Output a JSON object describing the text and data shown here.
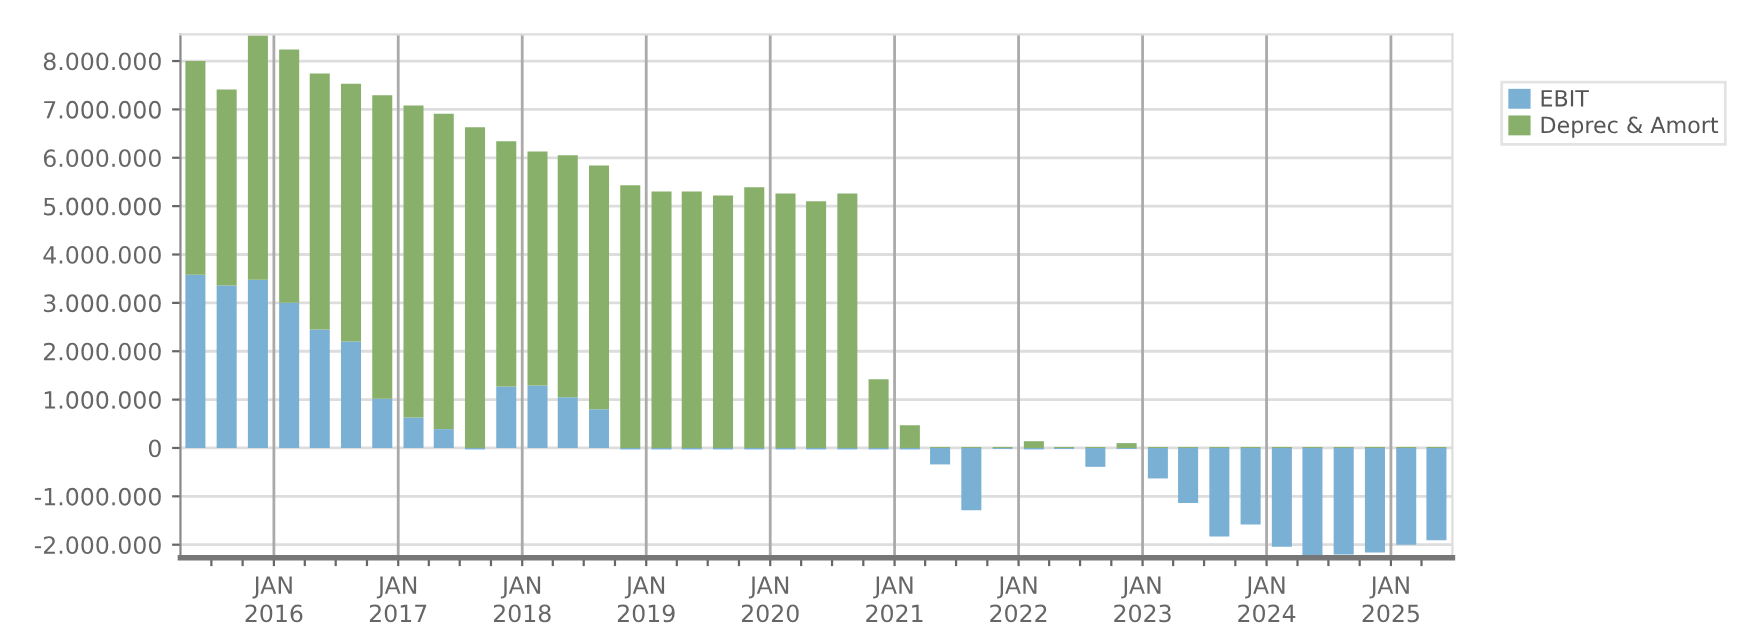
{
  "chart_data": {
    "type": "bar",
    "stacked": true,
    "x": [
      "2015-05-15",
      "2015-08-15",
      "2015-11-15",
      "2016-02-15",
      "2016-05-15",
      "2016-08-15",
      "2016-11-15",
      "2017-02-15",
      "2017-05-15",
      "2017-08-15",
      "2017-11-15",
      "2018-02-15",
      "2018-05-15",
      "2018-08-15",
      "2018-11-15",
      "2019-02-15",
      "2019-05-15",
      "2019-08-15",
      "2019-11-15",
      "2020-02-15",
      "2020-05-15",
      "2020-08-15",
      "2020-11-15",
      "2021-02-15",
      "2021-05-15",
      "2021-08-15",
      "2021-11-15",
      "2022-02-15",
      "2022-05-15",
      "2022-08-15",
      "2022-11-15",
      "2023-02-15",
      "2023-05-15",
      "2023-08-15",
      "2023-11-15",
      "2024-02-15",
      "2024-05-15",
      "2024-08-15",
      "2024-11-15",
      "2025-02-15",
      "2025-05-15"
    ],
    "series": [
      {
        "name": "EBIT",
        "color": "#7ab0d4",
        "values": [
          3580000,
          3360000,
          3480000,
          3000000,
          2450000,
          2200000,
          1020000,
          630000,
          390000,
          -30000,
          1270000,
          1290000,
          1050000,
          800000,
          -30000,
          -30000,
          -30000,
          -30000,
          -30000,
          -30000,
          -30000,
          -30000,
          -30000,
          -30000,
          -340000,
          -1290000,
          -20000,
          -30000,
          -20000,
          -390000,
          -20000,
          -630000,
          -1140000,
          -1830000,
          -1580000,
          -2040000,
          -2250000,
          -2200000,
          -2160000,
          -2000000,
          -1910000
        ]
      },
      {
        "name": "Deprec & Amort",
        "color": "#88b06b",
        "values": [
          4420000,
          4050000,
          5050000,
          5240000,
          5290000,
          5330000,
          6270000,
          6450000,
          6520000,
          6630000,
          5070000,
          4840000,
          5000000,
          5040000,
          5430000,
          5300000,
          5300000,
          5220000,
          5390000,
          5260000,
          5100000,
          5260000,
          1420000,
          470000,
          20000,
          20000,
          20000,
          140000,
          20000,
          20000,
          100000,
          20000,
          20000,
          20000,
          20000,
          20000,
          20000,
          20000,
          20000,
          20000,
          20000
        ]
      }
    ],
    "xlim": [
      "2015-04-01",
      "2025-07-01"
    ],
    "xticks": [
      {
        "value": "2015-07-01",
        "label": null
      },
      {
        "value": "2015-10-01",
        "label": null
      },
      {
        "value": "2016-01-01",
        "label": "JAN\n2016"
      },
      {
        "value": "2016-04-01",
        "label": null
      },
      {
        "value": "2016-07-01",
        "label": null
      },
      {
        "value": "2016-10-01",
        "label": null
      },
      {
        "value": "2017-01-01",
        "label": "JAN\n2017"
      },
      {
        "value": "2017-04-01",
        "label": null
      },
      {
        "value": "2017-07-01",
        "label": null
      },
      {
        "value": "2017-10-01",
        "label": null
      },
      {
        "value": "2018-01-01",
        "label": "JAN\n2018"
      },
      {
        "value": "2018-04-01",
        "label": null
      },
      {
        "value": "2018-07-01",
        "label": null
      },
      {
        "value": "2018-10-01",
        "label": null
      },
      {
        "value": "2019-01-01",
        "label": "JAN\n2019"
      },
      {
        "value": "2019-04-01",
        "label": null
      },
      {
        "value": "2019-07-01",
        "label": null
      },
      {
        "value": "2019-10-01",
        "label": null
      },
      {
        "value": "2020-01-01",
        "label": "JAN\n2020"
      },
      {
        "value": "2020-04-01",
        "label": null
      },
      {
        "value": "2020-07-01",
        "label": null
      },
      {
        "value": "2020-10-01",
        "label": null
      },
      {
        "value": "2021-01-01",
        "label": "JAN\n2021"
      },
      {
        "value": "2021-04-01",
        "label": null
      },
      {
        "value": "2021-07-01",
        "label": null
      },
      {
        "value": "2021-10-01",
        "label": null
      },
      {
        "value": "2022-01-01",
        "label": "JAN\n2022"
      },
      {
        "value": "2022-04-01",
        "label": null
      },
      {
        "value": "2022-07-01",
        "label": null
      },
      {
        "value": "2022-10-01",
        "label": null
      },
      {
        "value": "2023-01-01",
        "label": "JAN\n2023"
      },
      {
        "value": "2023-04-01",
        "label": null
      },
      {
        "value": "2023-07-01",
        "label": null
      },
      {
        "value": "2023-10-01",
        "label": null
      },
      {
        "value": "2024-01-01",
        "label": "JAN\n2024"
      },
      {
        "value": "2024-04-01",
        "label": null
      },
      {
        "value": "2024-07-01",
        "label": null
      },
      {
        "value": "2024-10-01",
        "label": null
      },
      {
        "value": "2025-01-01",
        "label": "JAN\n2025"
      },
      {
        "value": "2025-04-01",
        "label": null
      }
    ],
    "ylim": [
      -2270000,
      8550000
    ],
    "yticks": [
      {
        "value": -2000000,
        "label": "-2.000.000"
      },
      {
        "value": -1000000,
        "label": "-1.000.000"
      },
      {
        "value": 0,
        "label": "0"
      },
      {
        "value": 1000000,
        "label": "1.000.000"
      },
      {
        "value": 2000000,
        "label": "2.000.000"
      },
      {
        "value": 3000000,
        "label": "3.000.000"
      },
      {
        "value": 4000000,
        "label": "4.000.000"
      },
      {
        "value": 5000000,
        "label": "5.000.000"
      },
      {
        "value": 6000000,
        "label": "6.000.000"
      },
      {
        "value": 7000000,
        "label": "7.000.000"
      },
      {
        "value": 8000000,
        "label": "8.000.000"
      }
    ],
    "grid": true,
    "legend": "top right"
  }
}
